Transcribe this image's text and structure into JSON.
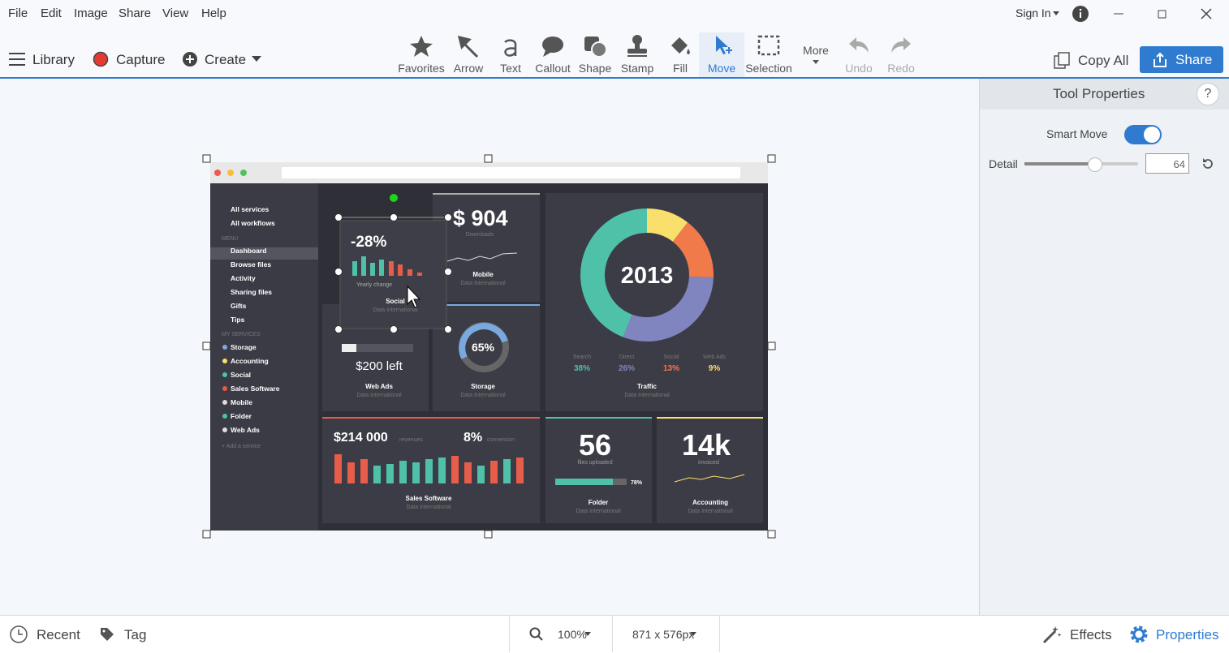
{
  "menu": [
    "File",
    "Edit",
    "Image",
    "Share",
    "View",
    "Help"
  ],
  "account": {
    "sign_in": "Sign In"
  },
  "left_actions": {
    "library": "Library",
    "capture": "Capture",
    "create": "Create"
  },
  "tools": [
    "Favorites",
    "Arrow",
    "Text",
    "Callout",
    "Shape",
    "Stamp",
    "Fill",
    "Move",
    "Selection",
    "More",
    "Undo",
    "Redo"
  ],
  "right_actions": {
    "copy_all": "Copy All",
    "share": "Share"
  },
  "properties": {
    "title": "Tool Properties",
    "help": "?",
    "smart_move": "Smart Move",
    "detail": "Detail",
    "detail_value": "64"
  },
  "status": {
    "recent": "Recent",
    "tag": "Tag",
    "zoom": "100%",
    "size": "871 x 576px",
    "effects": "Effects",
    "properties": "Properties"
  },
  "dashboard": {
    "sidebar": [
      "All services",
      "All workflows",
      "MENU",
      "Dashboard",
      "Browse files",
      "Activity",
      "Sharing files",
      "Gifts",
      "Tips",
      "MY SERVICES",
      "Storage",
      "Accounting",
      "Social",
      "Sales Software",
      "Mobile",
      "Folder",
      "Web Ads",
      "+ Add a service"
    ],
    "social": {
      "value": "-28%",
      "caption": "Yearly change",
      "title": "Social",
      "subtitle": "Data International"
    },
    "mobile": {
      "value": "$ 904",
      "caption": "Downloads",
      "title": "Mobile",
      "subtitle": "Data International"
    },
    "web_ads": {
      "value": "$200 left",
      "title": "Web Ads",
      "subtitle": "Data International"
    },
    "storage": {
      "value": "65%",
      "title": "Storage",
      "subtitle": "Data International"
    },
    "traffic": {
      "center": "2013",
      "title": "Traffic",
      "subtitle": "Data International",
      "segments": [
        {
          "name": "Search",
          "value": 38,
          "label": "38%",
          "color": "#4fc1a9"
        },
        {
          "name": "Direct",
          "value": 26,
          "label": "26%",
          "color": "#8085c0"
        },
        {
          "name": "Social",
          "value": 13,
          "label": "13%",
          "color": "#f07a4a"
        },
        {
          "name": "Web Ads",
          "value": 9,
          "label": "9%",
          "color": "#f9df6b"
        }
      ]
    },
    "sales": {
      "value": "$214 000",
      "value_caption": "revenues",
      "rate": "8%",
      "rate_caption": "conversion",
      "title": "Sales Software",
      "subtitle": "Data International"
    },
    "folder": {
      "value": "56",
      "caption": "files uploaded",
      "percent": "78%",
      "title": "Folder",
      "subtitle": "Data International"
    },
    "accounting": {
      "value": "14k",
      "caption": "invoiced",
      "title": "Accounting",
      "subtitle": "Data International"
    }
  }
}
